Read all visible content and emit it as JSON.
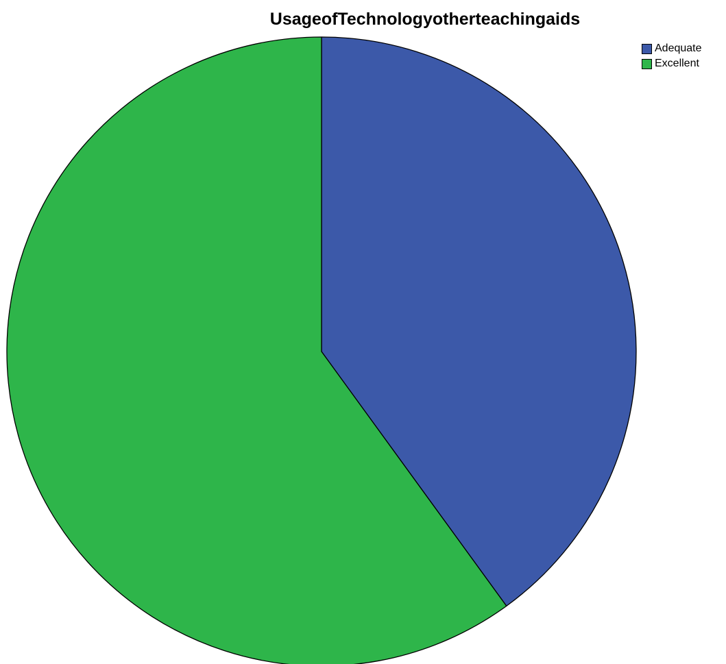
{
  "chart_data": {
    "type": "pie",
    "title": "UsageofTechnologyotherteachingaids",
    "categories": [
      "Adequate",
      "Excellent"
    ],
    "values": [
      40,
      60
    ],
    "colors": [
      "#3c59a9",
      "#2eb54a"
    ],
    "start_angle": "12 o'clock, clockwise",
    "legend": "top-right",
    "border_color": "#000000"
  }
}
